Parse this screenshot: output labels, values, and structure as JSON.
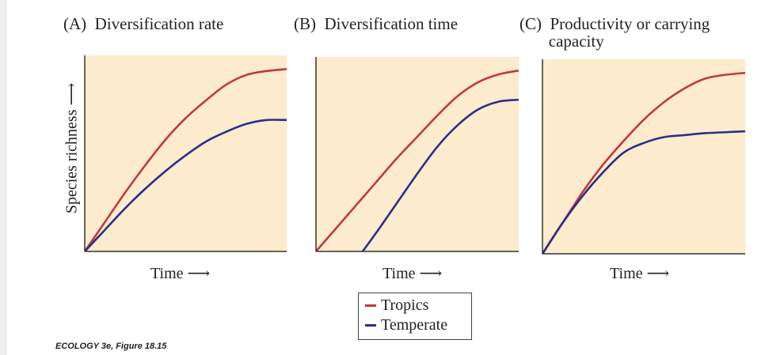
{
  "chart_data": [
    {
      "type": "line",
      "title": "(A)  Diversification rate",
      "xlabel": "Time ⟶",
      "ylabel": "Species richness ⟶",
      "background": "#fcebcc",
      "grid": false,
      "series": [
        {
          "name": "Tropics",
          "color": "#c0393f",
          "x": [
            0,
            1,
            2,
            3,
            4,
            5,
            6,
            7,
            8,
            9,
            10
          ],
          "y": [
            0,
            0.15,
            0.3,
            0.44,
            0.57,
            0.68,
            0.77,
            0.85,
            0.9,
            0.92,
            0.93
          ]
        },
        {
          "name": "Temperate",
          "color": "#2b2f8a",
          "x": [
            0,
            1,
            2,
            3,
            4,
            5,
            6,
            7,
            8,
            9,
            10
          ],
          "y": [
            0,
            0.11,
            0.22,
            0.32,
            0.41,
            0.49,
            0.56,
            0.61,
            0.65,
            0.67,
            0.67
          ]
        }
      ]
    },
    {
      "type": "line",
      "title": "(B)  Diversification time",
      "xlabel": "Time ⟶",
      "background": "#fcebcc",
      "grid": false,
      "series": [
        {
          "name": "Tropics",
          "color": "#c0393f",
          "x": [
            0,
            1,
            2,
            3,
            4,
            5,
            6,
            7,
            8,
            9,
            10
          ],
          "y": [
            0,
            0.12,
            0.24,
            0.36,
            0.48,
            0.59,
            0.7,
            0.8,
            0.87,
            0.91,
            0.93
          ]
        },
        {
          "name": "Temperate",
          "color": "#2b2f8a",
          "x": [
            2.3,
            3,
            4,
            5,
            6,
            7,
            8,
            9,
            10
          ],
          "y": [
            0,
            0.1,
            0.25,
            0.4,
            0.54,
            0.65,
            0.73,
            0.77,
            0.78
          ]
        }
      ]
    },
    {
      "type": "line",
      "title": "(C)  Productivity or carrying\n       capacity",
      "xlabel": "Time ⟶",
      "background": "#fcebcc",
      "grid": false,
      "series": [
        {
          "name": "Tropics",
          "color": "#c0393f",
          "x": [
            0,
            1,
            2,
            3,
            4,
            5,
            6,
            7,
            8,
            9,
            10
          ],
          "y": [
            0,
            0.16,
            0.32,
            0.46,
            0.58,
            0.69,
            0.78,
            0.85,
            0.9,
            0.92,
            0.93
          ]
        },
        {
          "name": "Temperate",
          "color": "#2b2f8a",
          "x": [
            0,
            1,
            2,
            3,
            4,
            5,
            6,
            7,
            8,
            9,
            10
          ],
          "y": [
            0,
            0.16,
            0.3,
            0.42,
            0.52,
            0.57,
            0.6,
            0.61,
            0.62,
            0.625,
            0.63
          ]
        }
      ]
    }
  ],
  "legend": {
    "items": [
      {
        "label": "Tropics",
        "color": "#c0393f"
      },
      {
        "label": "Temperate",
        "color": "#2b2f8a"
      }
    ],
    "placement": "bottom-center"
  },
  "caption": "ECOLOGY 3e, Figure 18.15"
}
